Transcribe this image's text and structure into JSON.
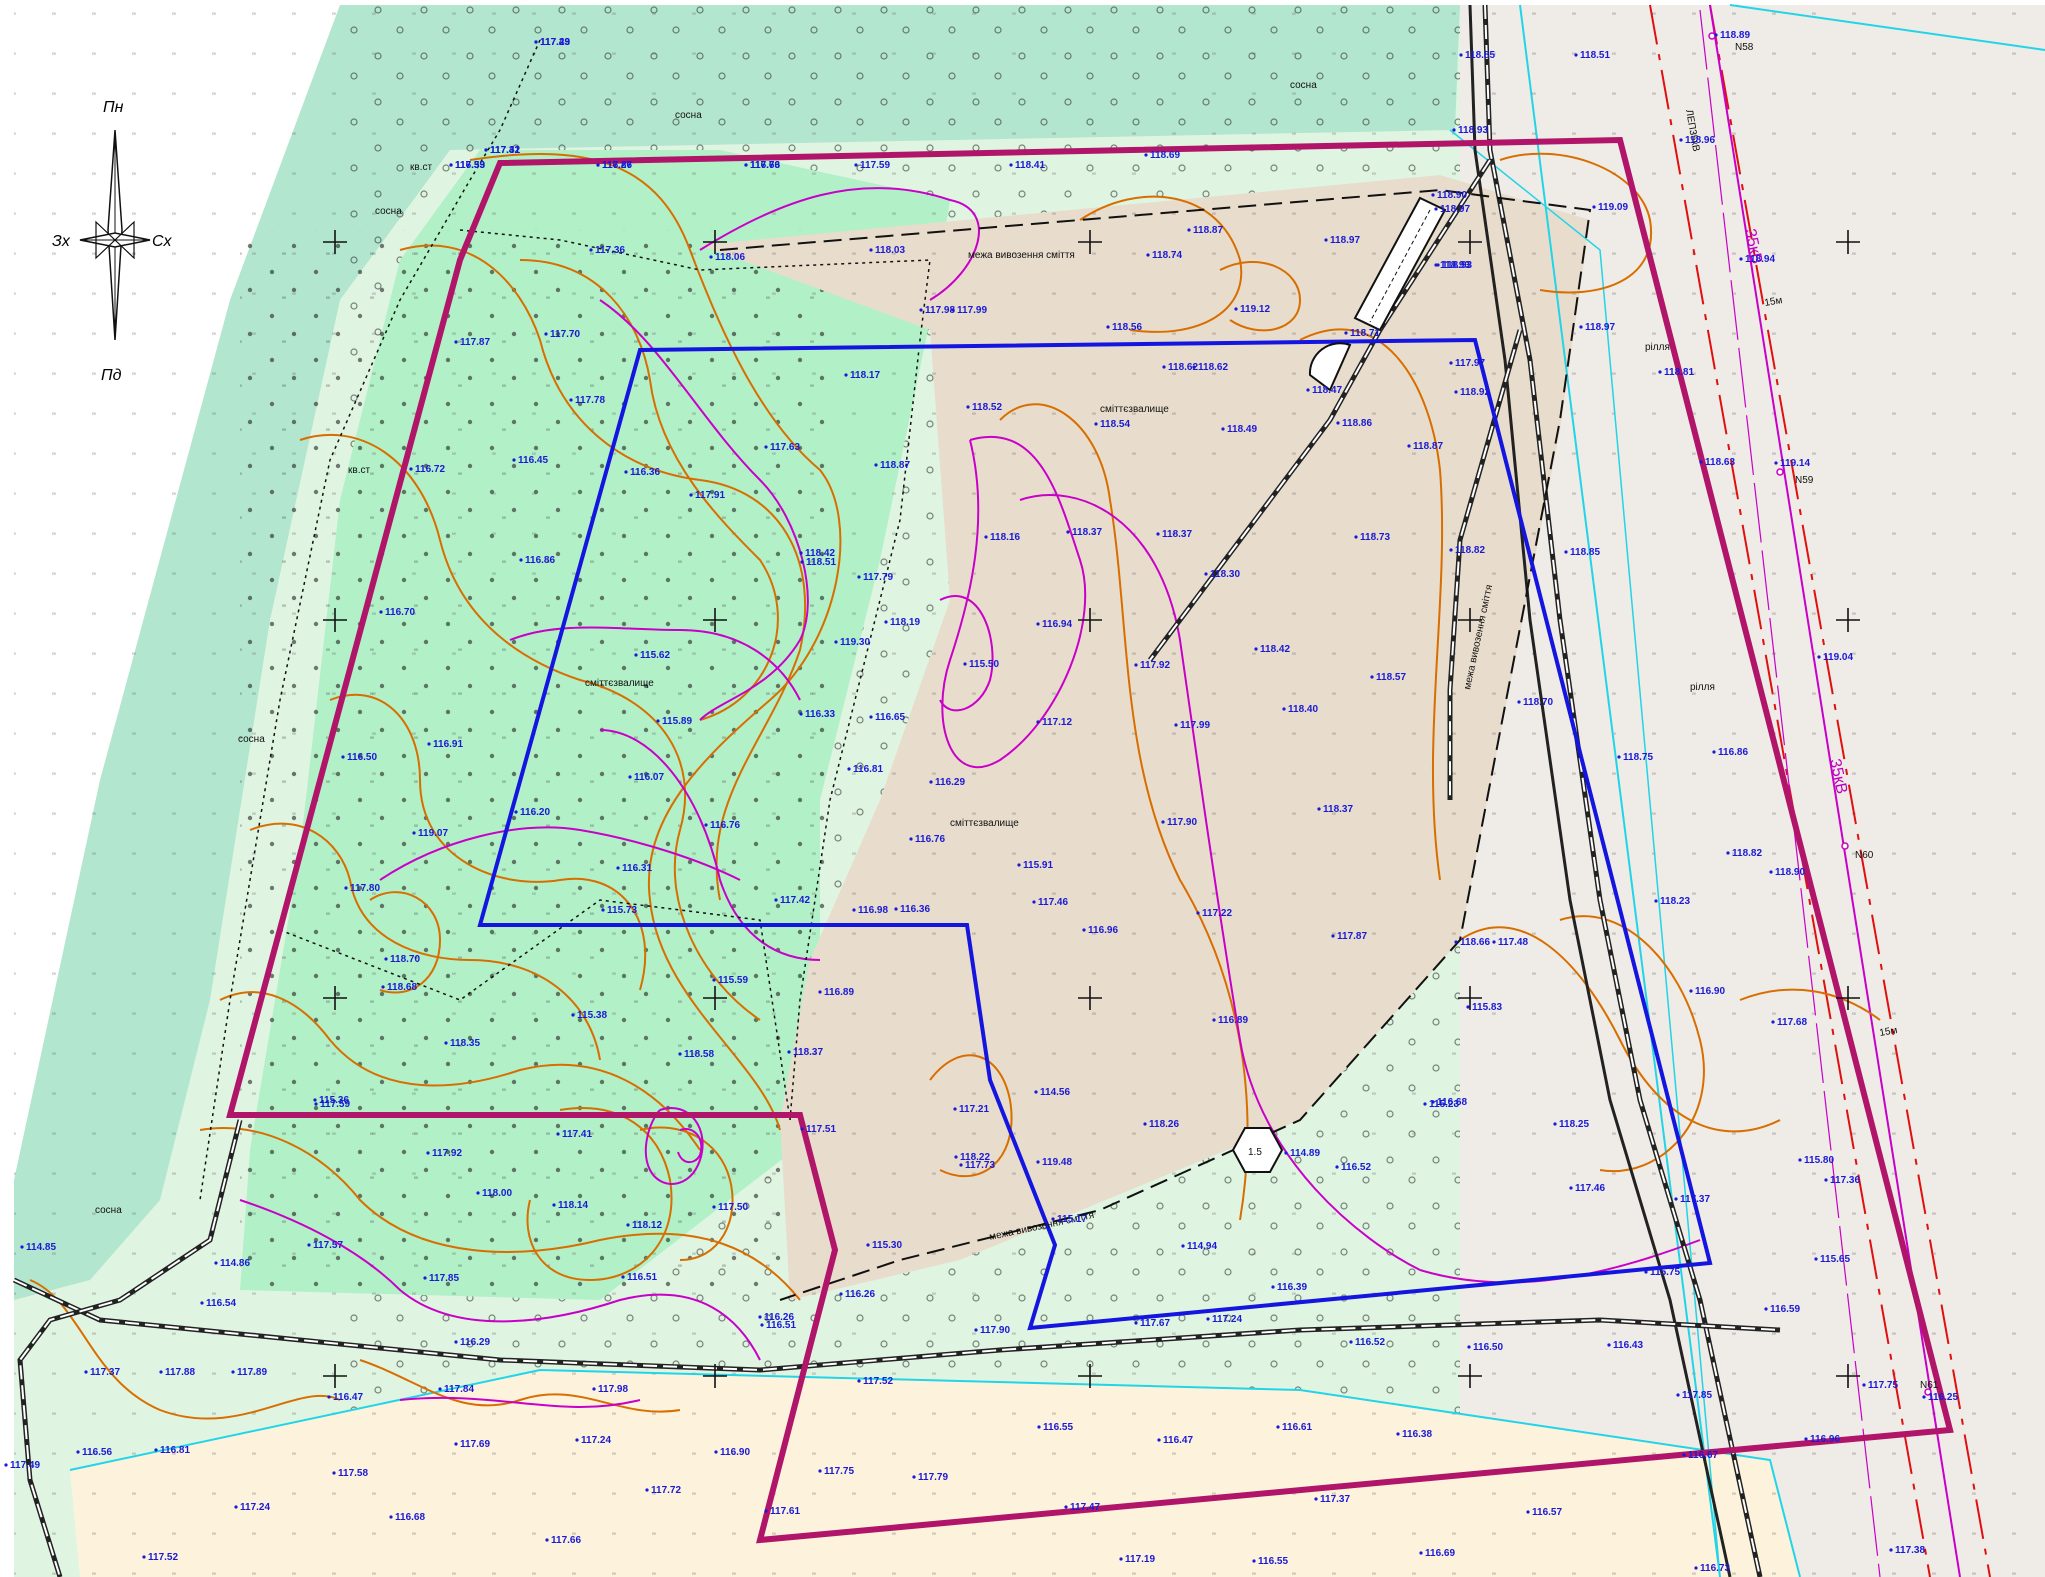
{
  "compass": {
    "north": "Пн",
    "south": "Пд",
    "west": "Зх",
    "east": "Сх"
  },
  "colors": {
    "forest": "#b3e6cf",
    "meadow": "#dff5e2",
    "green_zone": "#b2f0c8",
    "landfill": "#e8ddcc",
    "field": "#efebe6",
    "sand": "#fdf3dc",
    "site_boundary": "#b0156a",
    "inner_boundary": "#1515e0",
    "contour": "#d86e00",
    "contour_major": "#c800c8",
    "power_line": "#e01010",
    "road": "#222222",
    "cyan_line": "#22d4e8"
  },
  "labels": {
    "landfill_1": "сміттєзвалище",
    "landfill_2": "сміттєзвалище",
    "landfill_3": "сміттєзвалище",
    "boundary_1": "межа вивозення сміття",
    "boundary_2": "межа вивозення сміття",
    "boundary_3": "межа вивозення сміття",
    "field_1": "рілля",
    "field_2": "рілля",
    "shrub_1": "кв.ст",
    "shrub_2": "кв.ст",
    "power_1": "35кВ",
    "power_2": "35кВ",
    "buffer_1": "15м",
    "buffer_2": "15м",
    "pylon_1": "N58",
    "pylon_2": "N59",
    "pylon_3": "N60",
    "pylon_4": "N61",
    "line_code": "ЛЕП35кВ",
    "tree_1": "сосна",
    "tree_2": "сосна",
    "tree_3": "сосна",
    "tree_4": "сосна",
    "tree_5": "сосна"
  },
  "elevations": [
    "117.49",
    "117.42",
    "117.39",
    "117.27",
    "117.76",
    "117.59",
    "118.41",
    "118.69",
    "118.93",
    "118.90",
    "118.97",
    "118.93",
    "118.85",
    "118.51",
    "118.89",
    "118.96",
    "117.36",
    "118.06",
    "118.03",
    "118.74",
    "118.87",
    "118.97",
    "118.93",
    "119.09",
    "118.94",
    "117.87",
    "117.70",
    "117.98",
    "117.99",
    "118.56",
    "119.12",
    "118.71",
    "118.97",
    "117.97",
    "117.78",
    "118.17",
    "118.62",
    "118.62",
    "118.47",
    "118.92",
    "118.81",
    "116.72",
    "116.45",
    "116.36",
    "118.52",
    "118.54",
    "118.49",
    "118.86",
    "118.87",
    "118.63",
    "119.14",
    "117.63",
    "117.91",
    "118.87",
    "118.16",
    "118.37",
    "118.37",
    "118.73",
    "118.82",
    "118.85",
    "116.86",
    "118.42",
    "118.51",
    "117.79",
    "118.30",
    "116.70",
    "119.30",
    "118.19",
    "116.94",
    "118.42",
    "117.92",
    "115.62",
    "116.33",
    "116.65",
    "115.50",
    "118.57",
    "118.40",
    "118.70",
    "119.04",
    "115.89",
    "117.12",
    "117.99",
    "116.86",
    "116.91",
    "116.50",
    "116.81",
    "116.29",
    "116.07",
    "118.37",
    "118.75",
    "116.20",
    "116.76",
    "116.76",
    "117.90",
    "118.82",
    "118.90",
    "119.07",
    "116.31",
    "115.91",
    "117.42",
    "117.46",
    "117.80",
    "115.73",
    "116.98",
    "117.22",
    "117.87",
    "118.23",
    "118.68",
    "115.59",
    "116.36",
    "116.96",
    "116.89",
    "117.48",
    "118.66",
    "118.70",
    "115.38",
    "116.89",
    "115.83",
    "116.90",
    "117.68",
    "118.35",
    "118.58",
    "118.37",
    "115.36",
    "114.56",
    "116.68",
    "115.23",
    "117.59",
    "117.21",
    "118.26",
    "118.25",
    "115.80",
    "117.41",
    "117.51",
    "118.22",
    "119.48",
    "117.73",
    "114.89",
    "116.52",
    "117.46",
    "117.37",
    "117.36",
    "117.92",
    "118.00",
    "118.14",
    "118.12",
    "117.50",
    "115.30",
    "115.17",
    "114.94",
    "114.85",
    "114.86",
    "116.54",
    "117.57",
    "117.85",
    "116.51",
    "116.26",
    "116.39",
    "115.75",
    "115.65",
    "116.26",
    "116.51",
    "117.90",
    "117.67",
    "117.24",
    "116.59",
    "116.29",
    "117.37",
    "117.88",
    "117.89",
    "117.52",
    "116.52",
    "116.50",
    "116.43",
    "116.47",
    "117.84",
    "117.98",
    "117.85",
    "117.75",
    "116.25",
    "116.56",
    "116.81",
    "117.69",
    "117.24",
    "116.90",
    "116.55",
    "116.47",
    "116.61",
    "116.38",
    "116.67",
    "117.58",
    "117.75",
    "117.79",
    "117.72",
    "117.37",
    "116.57",
    "116.96",
    "117.24",
    "116.68",
    "117.66",
    "117.47",
    "117.19",
    "116.55",
    "116.69",
    "116.73",
    "117.38",
    "117.52",
    "117.61",
    "117.49",
    "117.23",
    "117.31",
    "116.53",
    "116.86",
    "116.63"
  ]
}
